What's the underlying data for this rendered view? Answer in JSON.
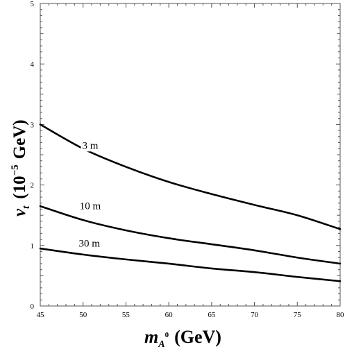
{
  "chart_data": {
    "type": "line",
    "xlim": [
      45,
      80
    ],
    "ylim": [
      0,
      5
    ],
    "x_ticks": [
      45,
      50,
      55,
      60,
      65,
      70,
      75,
      80
    ],
    "y_ticks": [
      0,
      1,
      2,
      3,
      4,
      5
    ],
    "grid": false,
    "xlabel": {
      "main": "m",
      "sub": "A",
      "sup": "0",
      "unit": "(GeV)"
    },
    "ylabel": {
      "main": "v",
      "sub": "t",
      "prefix": "(10",
      "exp": "−5",
      "unit": "GeV)"
    },
    "series": [
      {
        "name": "3 m",
        "x": [
          45,
          50,
          55,
          60,
          65,
          70,
          75,
          80
        ],
        "y": [
          3.0,
          2.6,
          2.3,
          2.05,
          1.85,
          1.67,
          1.5,
          1.27
        ]
      },
      {
        "name": "10 m",
        "x": [
          45,
          50,
          55,
          60,
          65,
          70,
          75,
          80
        ],
        "y": [
          1.65,
          1.42,
          1.25,
          1.12,
          1.02,
          0.92,
          0.8,
          0.7
        ]
      },
      {
        "name": "30 m",
        "x": [
          45,
          50,
          55,
          60,
          65,
          70,
          75,
          80
        ],
        "y": [
          0.95,
          0.85,
          0.77,
          0.7,
          0.62,
          0.56,
          0.48,
          0.41
        ]
      }
    ],
    "curve_labels": [
      {
        "text": "3 m",
        "x": 49.9,
        "y": 2.6
      },
      {
        "text": "10 m",
        "x": 49.6,
        "y": 1.6
      },
      {
        "text": "30 m",
        "x": 49.5,
        "y": 0.98
      }
    ]
  }
}
